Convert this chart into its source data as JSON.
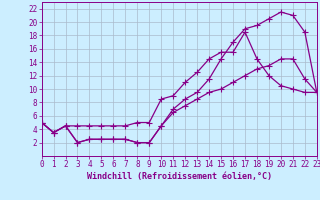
{
  "xlabel": "Windchill (Refroidissement éolien,°C)",
  "background_color": "#cceeff",
  "grid_color": "#aabbcc",
  "line_color": "#880088",
  "xlim": [
    0,
    23
  ],
  "ylim": [
    0,
    23
  ],
  "xticks": [
    0,
    1,
    2,
    3,
    4,
    5,
    6,
    7,
    8,
    9,
    10,
    11,
    12,
    13,
    14,
    15,
    16,
    17,
    18,
    19,
    20,
    21,
    22,
    23
  ],
  "yticks": [
    2,
    4,
    6,
    8,
    10,
    12,
    14,
    16,
    18,
    20,
    22
  ],
  "line1_x": [
    0,
    1,
    2,
    3,
    4,
    5,
    6,
    7,
    8,
    9,
    10,
    11,
    12,
    13,
    14,
    15,
    16,
    17,
    18,
    19,
    20,
    21,
    22,
    23
  ],
  "line1_y": [
    5,
    3.5,
    4.5,
    4.5,
    4.5,
    4.5,
    4.5,
    4.5,
    5,
    5,
    8.5,
    9,
    11,
    12.5,
    14.5,
    15.5,
    15.5,
    18.5,
    14.5,
    12,
    10.5,
    10,
    9.5,
    9.5
  ],
  "line2_x": [
    0,
    1,
    2,
    3,
    4,
    5,
    6,
    7,
    8,
    9,
    10,
    11,
    12,
    13,
    14,
    15,
    16,
    17,
    18,
    19,
    20,
    21,
    22,
    23
  ],
  "line2_y": [
    5,
    3.5,
    4.5,
    2,
    2.5,
    2.5,
    2.5,
    2.5,
    2,
    2,
    4.5,
    7,
    8.5,
    9.5,
    11.5,
    14.5,
    17,
    19,
    19.5,
    20.5,
    21.5,
    21,
    18.5,
    9.5
  ],
  "line3_x": [
    0,
    1,
    2,
    3,
    4,
    5,
    6,
    7,
    8,
    9,
    10,
    11,
    12,
    13,
    14,
    15,
    16,
    17,
    18,
    19,
    20,
    21,
    22,
    23
  ],
  "line3_y": [
    5,
    3.5,
    4.5,
    2,
    2.5,
    2.5,
    2.5,
    2.5,
    2,
    2,
    4.5,
    6.5,
    7.5,
    8.5,
    9.5,
    10,
    11,
    12,
    13,
    13.5,
    14.5,
    14.5,
    11.5,
    9.5
  ],
  "tick_fontsize": 5.5,
  "xlabel_fontsize": 6.0
}
